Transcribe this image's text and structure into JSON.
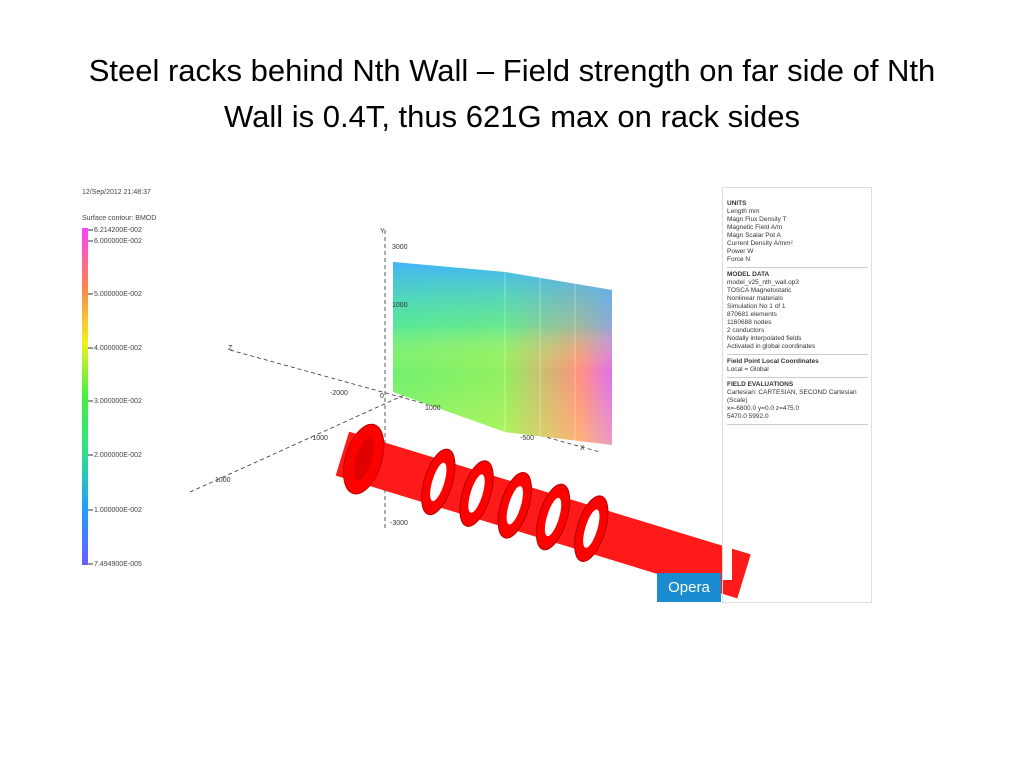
{
  "title": "Steel racks behind Nth Wall – Field strength on far side of Nth Wall is 0.4T, thus 621G max on rack sides",
  "plot": {
    "timestamp": "12/Sep/2012 21:48:37",
    "legend": {
      "title": "Surface contour: BMOD",
      "labels": [
        "6.214200E-002",
        "6.000000E-002",
        "5.000000E-002",
        "4.000000E-002",
        "3.000000E-002",
        "2.000000E-002",
        "1.000000E-002",
        "7.494900E-005"
      ]
    },
    "axis_labels": [
      "Y",
      "3000",
      "1000",
      "Z",
      "-2000",
      "1000",
      "0",
      "-1000",
      "X",
      "-3000",
      "1000",
      "-500"
    ],
    "badge": "Opera"
  },
  "info": {
    "sections": [
      {
        "heading": "UNITS",
        "rows": [
          "Length  mm",
          "Magn Flux Density  T",
          "Magnetic Field  A/m",
          "Magn Scalar Pot  A",
          "Current Density  A/mm²",
          "Power  W",
          "Force  N"
        ]
      },
      {
        "heading": "MODEL DATA",
        "rows": [
          "model_v25_nth_wall.op3",
          "TOSCA Magnetostatic",
          "Nonlinear materials",
          "Simulation No 1 of 1",
          "870681 elements",
          "1160688 nodes",
          "2 conductors",
          "Nodally interpolated fields",
          "Activated in global coordinates"
        ]
      },
      {
        "heading": "Field Point Local Coordinates",
        "rows": [
          "Local = Global"
        ]
      },
      {
        "heading": "FIELD EVALUATIONS",
        "rows": [
          "Cartesian: CARTESIAN, SECOND Cartesian",
          "(Scale)",
          "x=-6800.0 y=0.0 z=475.0",
          "5470.0  5992.0"
        ]
      }
    ]
  }
}
